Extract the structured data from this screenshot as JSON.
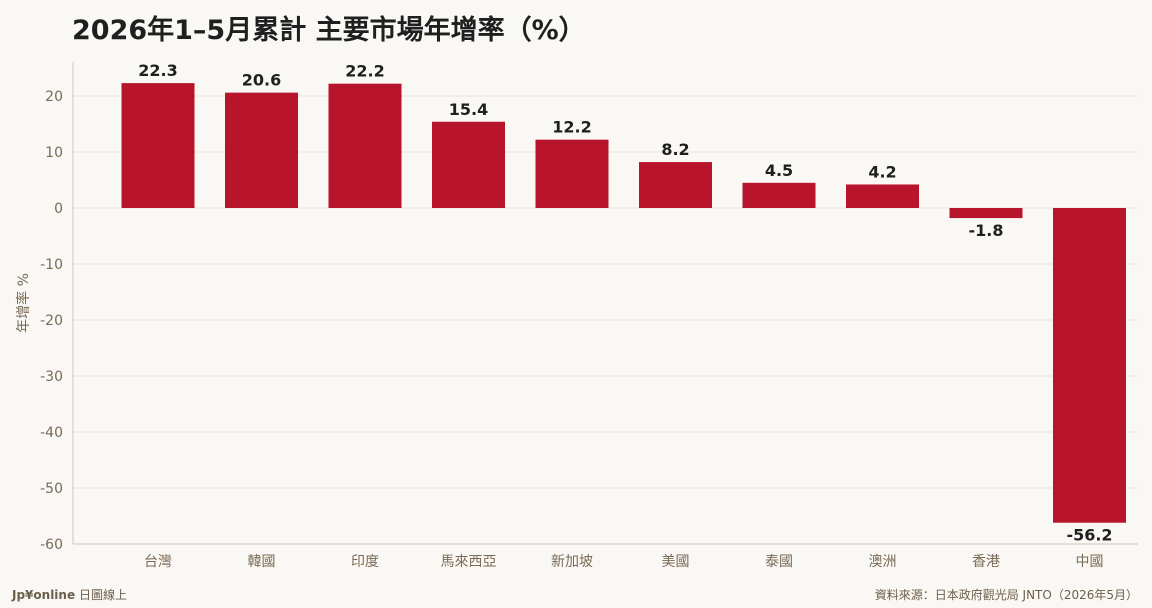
{
  "colors": {
    "bar": "#b8152d",
    "grid": "#eedfd8",
    "axis": "#cfc3b4",
    "tick_text": "#7a6a55",
    "label_text": "#1f1f1f",
    "background": "#faf8f5"
  },
  "footer": {
    "brand_logo": "Jp¥online",
    "brand_name": "日圖線上",
    "source": "資料來源：日本政府觀光局 JNTO（2026年5月）"
  },
  "chart_data": {
    "type": "bar",
    "title": "2026年1–5月累計 主要市場年增率（%）",
    "ylabel": "年增率 %",
    "xlabel": "",
    "categories": [
      "台灣",
      "韓國",
      "印度",
      "馬來西亞",
      "新加坡",
      "美國",
      "泰國",
      "澳洲",
      "香港",
      "中國"
    ],
    "values": [
      22.3,
      20.6,
      22.2,
      15.4,
      12.2,
      8.2,
      4.5,
      4.2,
      -1.8,
      -56.2
    ],
    "data_labels": [
      "22.3",
      "20.6",
      "22.2",
      "15.4",
      "12.2",
      "8.2",
      "4.5",
      "4.2",
      "-1.8",
      "-56.2"
    ],
    "ylim": [
      -60,
      26
    ],
    "yticks": [
      20,
      10,
      0,
      -10,
      -20,
      -30,
      -40,
      -50,
      -60
    ],
    "grid": true,
    "legend": "none"
  }
}
